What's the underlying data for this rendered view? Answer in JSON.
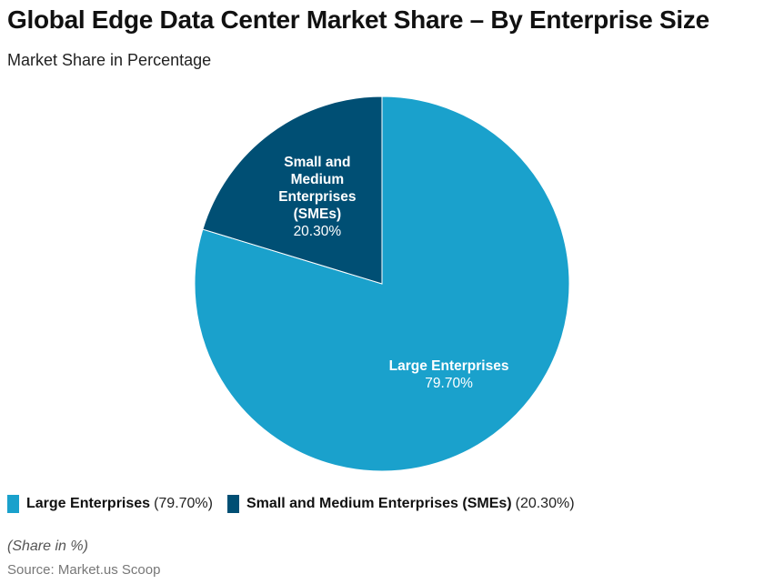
{
  "chart_data": {
    "type": "pie",
    "title": "Global Edge Data Center Market Share – By Enterprise Size",
    "subtitle": "Market Share in Percentage",
    "slices": [
      {
        "name": "Large Enterprises",
        "value": 79.7,
        "value_label": "79.70%",
        "legend_value": "(79.70%)",
        "color": "#1aa1cc",
        "label_lines": [
          "Large Enterprises"
        ]
      },
      {
        "name": "Small and Medium Enterprises (SMEs)",
        "value": 20.3,
        "value_label": "20.30%",
        "legend_value": "(20.30%)",
        "color": "#004f74",
        "label_lines": [
          "Small and",
          "Medium",
          "Enterprises",
          "(SMEs)"
        ]
      }
    ],
    "legend_position": "bottom-left",
    "note": "(Share in %)",
    "source": "Source: Market.us Scoop"
  }
}
